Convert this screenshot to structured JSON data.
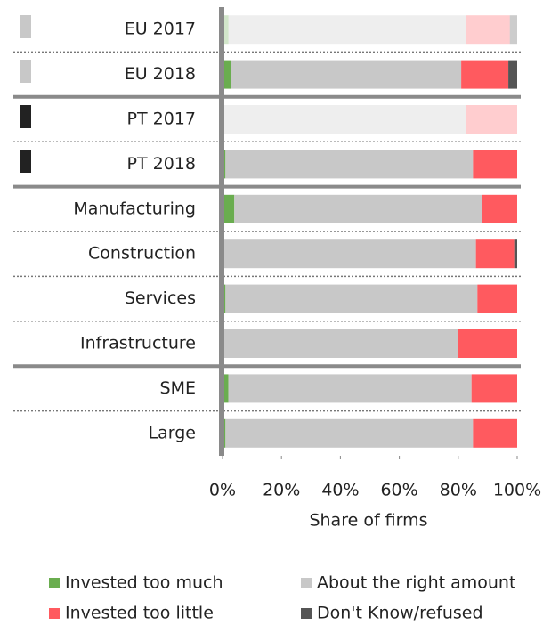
{
  "chart_data": {
    "type": "stacked_barh",
    "categories": [
      "EU 2017",
      "EU 2018",
      "PT 2017",
      "PT 2018",
      "Manufacturing",
      "Construction",
      "Services",
      "Infrastructure",
      "SME",
      "Large"
    ],
    "series": [
      {
        "name": "Invested too much",
        "color": "#6aad4f",
        "values": [
          2,
          3,
          0.5,
          1,
          4,
          0,
          1,
          0,
          2,
          1
        ]
      },
      {
        "name": "About the right amount",
        "color": "#c8c8c8",
        "values": [
          80.5,
          78,
          82,
          84,
          84,
          86,
          85.5,
          80,
          82.5,
          84
        ]
      },
      {
        "name": "Invested too little",
        "color": "#ff5a5f",
        "values": [
          15,
          16,
          17.5,
          15,
          12,
          13,
          13.5,
          20,
          15.5,
          15
        ]
      },
      {
        "name": "Don't Know/refused",
        "color": "#555555",
        "values": [
          2.5,
          3,
          0,
          0,
          0,
          1,
          0,
          0,
          0,
          0
        ]
      }
    ],
    "opacity": [
      0.3,
      1,
      0.3,
      1,
      1,
      1,
      1,
      1,
      1,
      1
    ],
    "xlim": [
      0,
      100
    ],
    "xticks": [
      {
        "value": 0,
        "label": "0%"
      },
      {
        "value": 20,
        "label": "20%"
      },
      {
        "value": 40,
        "label": "40%"
      },
      {
        "value": 60,
        "label": "60%"
      },
      {
        "value": 80,
        "label": "80%"
      },
      {
        "value": 100,
        "label": "100%"
      }
    ],
    "xlabel": "Share of firms"
  }
}
